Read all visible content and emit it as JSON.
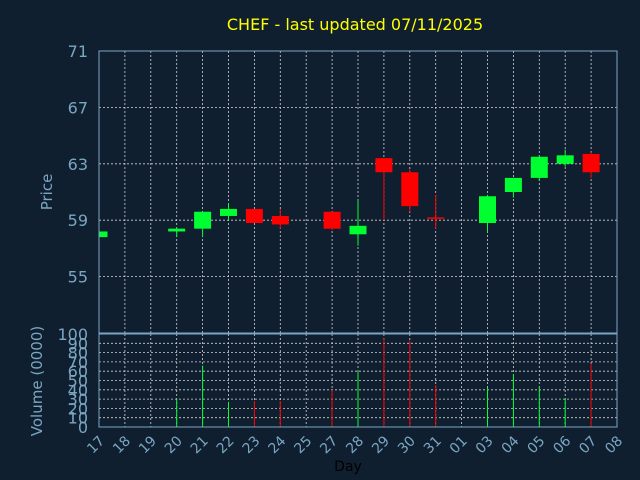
{
  "chart_data": [
    {
      "type": "candlestick",
      "title": "CHEF - last updated 07/11/2025",
      "ylabel": "Price",
      "ylim": [
        51,
        71
      ],
      "yticks": [
        55,
        59,
        63,
        67,
        71
      ],
      "x_ticks": [
        "17",
        "18",
        "19",
        "20",
        "21",
        "22",
        "23",
        "24",
        "25",
        "27",
        "28",
        "29",
        "30",
        "31",
        "01",
        "03",
        "04",
        "05",
        "06",
        "07",
        "08"
      ],
      "colors": {
        "up": "#00ff30",
        "down": "#ff0000",
        "grid": "#d0d0d0",
        "axis": "#7aa6c2",
        "title": "#ffff00"
      },
      "candles": [
        {
          "day": "17",
          "open": 57.8,
          "high": 58.2,
          "low": 57.8,
          "close": 58.2
        },
        {
          "day": "20",
          "open": 58.2,
          "high": 58.5,
          "low": 57.8,
          "close": 58.4
        },
        {
          "day": "21",
          "open": 58.4,
          "high": 59.6,
          "low": 57.8,
          "close": 59.6
        },
        {
          "day": "22",
          "open": 59.3,
          "high": 60.2,
          "low": 59.0,
          "close": 59.8
        },
        {
          "day": "23",
          "open": 59.8,
          "high": 59.8,
          "low": 58.8,
          "close": 58.8
        },
        {
          "day": "24",
          "open": 59.3,
          "high": 59.8,
          "low": 58.4,
          "close": 58.7
        },
        {
          "day": "27",
          "open": 59.6,
          "high": 59.6,
          "low": 58.3,
          "close": 58.4
        },
        {
          "day": "28",
          "open": 58.0,
          "high": 60.4,
          "low": 57.2,
          "close": 58.6
        },
        {
          "day": "29",
          "open": 63.4,
          "high": 63.4,
          "low": 59.0,
          "close": 62.4
        },
        {
          "day": "30",
          "open": 62.4,
          "high": 62.6,
          "low": 59.6,
          "close": 60.0
        },
        {
          "day": "31",
          "open": 59.2,
          "high": 60.8,
          "low": 58.4,
          "close": 59.1
        },
        {
          "day": "03",
          "open": 58.8,
          "high": 60.8,
          "low": 58.2,
          "close": 60.7
        },
        {
          "day": "04",
          "open": 61.0,
          "high": 62.0,
          "low": 60.6,
          "close": 62.0
        },
        {
          "day": "05",
          "open": 62.0,
          "high": 63.6,
          "low": 61.8,
          "close": 63.5
        },
        {
          "day": "06",
          "open": 63.0,
          "high": 64.0,
          "low": 62.8,
          "close": 63.6
        },
        {
          "day": "07",
          "open": 63.7,
          "high": 63.8,
          "low": 62.0,
          "close": 62.4
        }
      ]
    },
    {
      "type": "bar",
      "ylabel": "Volume (0000)",
      "xlabel": "Day",
      "ylim": [
        0,
        100
      ],
      "yticks": [
        0,
        10,
        20,
        30,
        40,
        50,
        60,
        70,
        80,
        90,
        100
      ],
      "categories": [
        "17",
        "20",
        "21",
        "22",
        "23",
        "24",
        "27",
        "28",
        "29",
        "30",
        "31",
        "03",
        "04",
        "05",
        "06",
        "07"
      ],
      "values": [
        0,
        30,
        66,
        27,
        28,
        28,
        40,
        60,
        95,
        93,
        45,
        42,
        57,
        43,
        31,
        68
      ],
      "directions": [
        "up",
        "up",
        "up",
        "up",
        "down",
        "down",
        "down",
        "up",
        "down",
        "down",
        "down",
        "up",
        "up",
        "up",
        "up",
        "down"
      ]
    }
  ]
}
